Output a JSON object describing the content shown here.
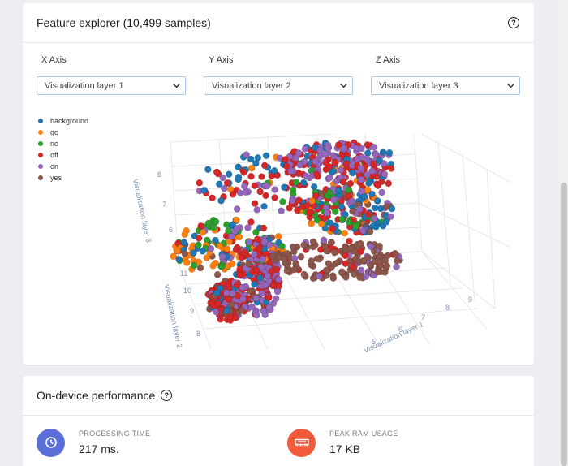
{
  "feature_explorer": {
    "title": "Feature explorer (10,499 samples)",
    "help_icon": "question-circle-icon",
    "axes": [
      {
        "label": "X Axis",
        "selected": "Visualization layer 1"
      },
      {
        "label": "Y Axis",
        "selected": "Visualization layer 2"
      },
      {
        "label": "Z Axis",
        "selected": "Visualization layer 3"
      }
    ],
    "legend": [
      {
        "label": "background",
        "color": "#1f77b4"
      },
      {
        "label": "go",
        "color": "#ff7f0e"
      },
      {
        "label": "no",
        "color": "#2ca02c"
      },
      {
        "label": "off",
        "color": "#d62728"
      },
      {
        "label": "on",
        "color": "#9467bd"
      },
      {
        "label": "yes",
        "color": "#8c564b"
      }
    ],
    "plot": {
      "z_axis_title": "Visualization layer 3",
      "y_axis_title": "Visualization layer 2",
      "x_axis_title": "Visualization layer 1",
      "z_ticks": [
        "8",
        "7",
        "6",
        "5"
      ],
      "y_ticks": [
        "11",
        "10",
        "9",
        "8"
      ],
      "x_ticks": [
        "9",
        "8",
        "7",
        "6",
        "5"
      ]
    }
  },
  "performance": {
    "title": "On-device performance",
    "processing_time": {
      "label": "PROCESSING TIME",
      "value": "217 ms.",
      "icon": "clock-icon",
      "color": "#5b6fd8"
    },
    "peak_ram": {
      "label": "PEAK RAM USAGE",
      "value": "17 KB",
      "icon": "memory-icon",
      "color": "#f15a3a"
    }
  }
}
